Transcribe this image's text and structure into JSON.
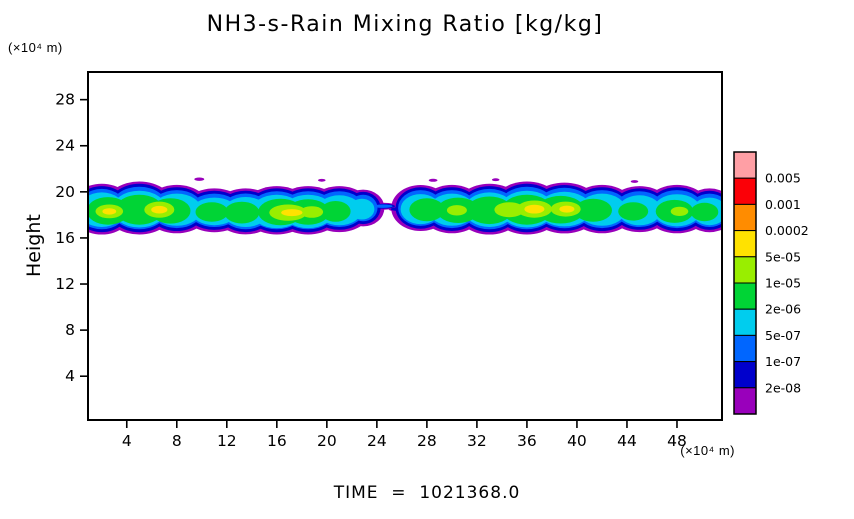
{
  "chart_data": {
    "type": "heatmap",
    "title": "NH3-s-Rain Mixing Ratio [kg/kg]",
    "ylabel": "Height",
    "y_axis_unit": "(×10⁴ m)",
    "x_axis_unit": "(×10⁴ m)",
    "time_annotation": "TIME  =  1021368.0",
    "x_ticks": [
      4,
      8,
      12,
      16,
      20,
      24,
      28,
      32,
      36,
      40,
      44,
      48
    ],
    "y_ticks": [
      4,
      8,
      12,
      16,
      20,
      24,
      28
    ],
    "xlim": [
      0.9,
      51.6
    ],
    "ylim": [
      0.2,
      30.4
    ],
    "grid": false,
    "legend_position": "right-colorbar",
    "colorbar": {
      "labels_top_to_bottom": [
        "0.005",
        "0.001",
        "0.0002",
        "5e-05",
        "1e-05",
        "2e-06",
        "5e-07",
        "1e-07",
        "2e-08"
      ],
      "colors_top_to_bottom": [
        "#ff9fa5",
        "#fb0007",
        "#ff8c00",
        "#ffe200",
        "#99ee00",
        "#00d435",
        "#00cdee",
        "#0066ff",
        "#0000cc",
        "#9900bb"
      ]
    },
    "band_summary": "Filled contour band of rain mixing ratio confined between heights ~16.5 and ~20.7 (×10⁴ m), spanning the full x range with a gap near x = 23.5–26; peak (yellow) cells near x ≈ 2.6, 6.6, 17, 36.6 and 39",
    "levels": [
      {
        "range": "< 2e-08",
        "color": "#9900bb",
        "ellipses": [
          [
            2,
            18.5,
            2.55,
            2.2
          ],
          [
            5,
            18.6,
            2.85,
            2.3
          ],
          [
            8,
            18.5,
            2.65,
            2.1
          ],
          [
            11,
            18.4,
            2.6,
            1.9
          ],
          [
            13.5,
            18.3,
            2.55,
            2.0
          ],
          [
            16,
            18.4,
            2.75,
            2.1
          ],
          [
            18.5,
            18.4,
            2.75,
            2.1
          ],
          [
            21,
            18.5,
            2.55,
            2.0
          ],
          [
            22.9,
            18.6,
            1.7,
            1.6
          ],
          [
            27.5,
            18.6,
            2.35,
            2.0
          ],
          [
            30,
            18.5,
            2.55,
            2.1
          ],
          [
            33,
            18.5,
            2.75,
            2.2
          ],
          [
            36,
            18.6,
            2.85,
            2.3
          ],
          [
            39,
            18.6,
            2.85,
            2.2
          ],
          [
            42,
            18.5,
            2.65,
            2.1
          ],
          [
            45,
            18.5,
            2.55,
            2.0
          ],
          [
            48,
            18.5,
            2.65,
            2.1
          ],
          [
            50.6,
            18.4,
            2.1,
            1.9
          ],
          [
            24.5,
            18.75,
            1.15,
            0.3
          ],
          [
            25.7,
            18.5,
            0.75,
            0.22
          ],
          [
            9.8,
            21.1,
            0.4,
            0.15
          ],
          [
            19.6,
            21.0,
            0.3,
            0.12
          ],
          [
            28.5,
            21.0,
            0.35,
            0.13
          ],
          [
            44.6,
            20.9,
            0.3,
            0.12
          ],
          [
            33.5,
            21.05,
            0.3,
            0.12
          ]
        ]
      },
      {
        "range": "2e-08 – 1e-07",
        "color": "#0000cc",
        "ellipses": [
          [
            2,
            18.5,
            2.2,
            2.0
          ],
          [
            5,
            18.6,
            2.5,
            2.1
          ],
          [
            8,
            18.5,
            2.3,
            1.9
          ],
          [
            11,
            18.4,
            2.3,
            1.7
          ],
          [
            13.5,
            18.3,
            2.2,
            1.8
          ],
          [
            16,
            18.4,
            2.4,
            1.9
          ],
          [
            18.5,
            18.4,
            2.4,
            1.9
          ],
          [
            21,
            18.5,
            2.2,
            1.8
          ],
          [
            22.9,
            18.6,
            1.4,
            1.4
          ],
          [
            27.5,
            18.6,
            2.0,
            1.8
          ],
          [
            30,
            18.5,
            2.2,
            1.9
          ],
          [
            33,
            18.5,
            2.4,
            2.0
          ],
          [
            36,
            18.6,
            2.5,
            2.1
          ],
          [
            39,
            18.6,
            2.5,
            2.0
          ],
          [
            42,
            18.5,
            2.3,
            1.9
          ],
          [
            45,
            18.5,
            2.2,
            1.8
          ],
          [
            48,
            18.5,
            2.3,
            1.9
          ],
          [
            50.6,
            18.4,
            1.8,
            1.7
          ],
          [
            24.5,
            18.75,
            0.95,
            0.22
          ],
          [
            25.7,
            18.5,
            0.6,
            0.16
          ]
        ]
      },
      {
        "range": "1e-07 – 5e-07",
        "color": "#0066ff",
        "ellipses": [
          [
            2,
            18.5,
            2.0,
            1.75
          ],
          [
            5,
            18.6,
            2.3,
            1.85
          ],
          [
            8,
            18.5,
            2.1,
            1.65
          ],
          [
            11,
            18.4,
            2.05,
            1.45
          ],
          [
            13.5,
            18.3,
            2.0,
            1.55
          ],
          [
            16,
            18.4,
            2.2,
            1.65
          ],
          [
            18.5,
            18.4,
            2.2,
            1.65
          ],
          [
            21,
            18.5,
            2.0,
            1.55
          ],
          [
            22.9,
            18.6,
            1.15,
            1.15
          ],
          [
            27.5,
            18.6,
            1.8,
            1.55
          ],
          [
            30,
            18.5,
            2.0,
            1.65
          ],
          [
            33,
            18.5,
            2.2,
            1.75
          ],
          [
            36,
            18.6,
            2.3,
            1.85
          ],
          [
            39,
            18.6,
            2.3,
            1.75
          ],
          [
            42,
            18.5,
            2.1,
            1.65
          ],
          [
            45,
            18.5,
            2.0,
            1.55
          ],
          [
            48,
            18.5,
            2.1,
            1.65
          ],
          [
            50.6,
            18.4,
            1.6,
            1.45
          ],
          [
            24.5,
            18.75,
            0.75,
            0.15
          ]
        ]
      },
      {
        "range": "5e-07 – 2e-06",
        "color": "#00cdee",
        "ellipses": [
          [
            2,
            18.45,
            1.85,
            1.5
          ],
          [
            5,
            18.5,
            2.15,
            1.6
          ],
          [
            8,
            18.45,
            1.95,
            1.4
          ],
          [
            11,
            18.3,
            1.85,
            1.2
          ],
          [
            13.5,
            18.25,
            1.8,
            1.3
          ],
          [
            16,
            18.3,
            2.05,
            1.45
          ],
          [
            18.5,
            18.3,
            2.05,
            1.45
          ],
          [
            21,
            18.4,
            1.8,
            1.3
          ],
          [
            22.8,
            18.5,
            1.0,
            0.9
          ],
          [
            27.5,
            18.5,
            1.6,
            1.3
          ],
          [
            30,
            18.45,
            1.85,
            1.4
          ],
          [
            33,
            18.45,
            2.0,
            1.5
          ],
          [
            36,
            18.5,
            2.15,
            1.6
          ],
          [
            39,
            18.5,
            2.15,
            1.5
          ],
          [
            42,
            18.45,
            1.9,
            1.4
          ],
          [
            45,
            18.4,
            1.75,
            1.3
          ],
          [
            48,
            18.4,
            1.9,
            1.4
          ],
          [
            50.6,
            18.3,
            1.4,
            1.2
          ]
        ]
      },
      {
        "range": "2e-06 – 1e-05",
        "color": "#00d435",
        "ellipses": [
          [
            2.5,
            18.35,
            1.7,
            1.2
          ],
          [
            5,
            18.45,
            1.9,
            1.3
          ],
          [
            7.5,
            18.35,
            1.6,
            1.1
          ],
          [
            10.8,
            18.25,
            1.3,
            0.85
          ],
          [
            13.2,
            18.2,
            1.4,
            0.95
          ],
          [
            16.3,
            18.25,
            1.8,
            1.15
          ],
          [
            18.5,
            18.25,
            1.7,
            1.1
          ],
          [
            20.7,
            18.3,
            1.2,
            0.9
          ],
          [
            28,
            18.45,
            1.4,
            1.0
          ],
          [
            30.5,
            18.4,
            1.7,
            1.1
          ],
          [
            33,
            18.4,
            1.8,
            1.2
          ],
          [
            36,
            18.45,
            2.0,
            1.3
          ],
          [
            38.7,
            18.45,
            1.9,
            1.2
          ],
          [
            41.3,
            18.4,
            1.5,
            1.0
          ],
          [
            44.5,
            18.3,
            1.2,
            0.8
          ],
          [
            47.8,
            18.3,
            1.5,
            1.0
          ],
          [
            50.2,
            18.25,
            1.1,
            0.8
          ]
        ]
      },
      {
        "range": "1e-05 – 5e-05",
        "color": "#99ee00",
        "ellipses": [
          [
            2.6,
            18.3,
            1.1,
            0.6
          ],
          [
            6.6,
            18.45,
            1.2,
            0.7
          ],
          [
            16.9,
            18.2,
            1.5,
            0.7
          ],
          [
            18.8,
            18.25,
            0.9,
            0.5
          ],
          [
            30.4,
            18.4,
            0.8,
            0.45
          ],
          [
            34.6,
            18.45,
            1.2,
            0.65
          ],
          [
            36.6,
            18.5,
            1.4,
            0.75
          ],
          [
            39.1,
            18.5,
            1.2,
            0.65
          ],
          [
            48.2,
            18.3,
            0.7,
            0.4
          ]
        ]
      },
      {
        "range": "5e-05 – 0.0002",
        "color": "#ffe200",
        "ellipses": [
          [
            2.6,
            18.3,
            0.55,
            0.28
          ],
          [
            6.6,
            18.45,
            0.65,
            0.33
          ],
          [
            17.2,
            18.2,
            0.85,
            0.3
          ],
          [
            36.6,
            18.5,
            0.8,
            0.38
          ],
          [
            39.2,
            18.5,
            0.6,
            0.3
          ]
        ]
      }
    ]
  }
}
